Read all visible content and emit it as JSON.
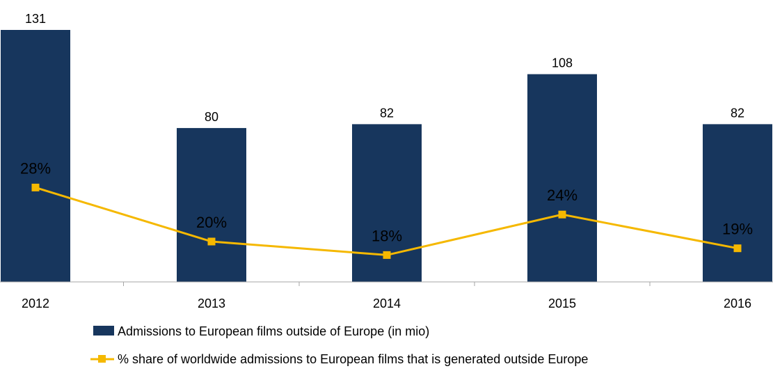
{
  "chart_data": {
    "type": "bar",
    "categories": [
      "2012",
      "2013",
      "2014",
      "2015",
      "2016"
    ],
    "series": [
      {
        "name": "Admissions to European films outside of Europe (in mio)",
        "kind": "bar",
        "values": [
          131,
          80,
          82,
          108,
          82
        ],
        "labels": [
          "131",
          "80",
          "82",
          "108",
          "82"
        ]
      },
      {
        "name": "% share of worldwide admissions to European films that is generated outside Europe",
        "kind": "line",
        "values": [
          28,
          20,
          18,
          24,
          19
        ],
        "labels": [
          "28%",
          "20%",
          "18%",
          "24%",
          "19%"
        ]
      }
    ],
    "ylim_bar": [
      0,
      131
    ],
    "ylim_line": [
      0,
      40
    ],
    "grid": false,
    "legend_position": "bottom",
    "colors": {
      "bar": "#17365d",
      "line": "#f5b800",
      "axis": "#a6a6a6"
    }
  }
}
